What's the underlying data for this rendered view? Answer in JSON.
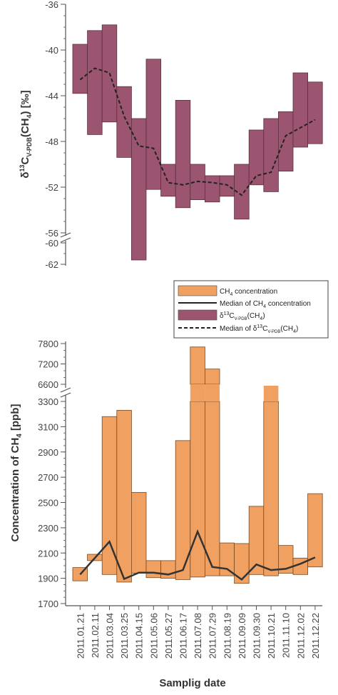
{
  "chart_data": [
    {
      "type": "bar",
      "subtype": "floating-range-with-median",
      "ylabel": "δ13CV-PDB(CH4) [‰]",
      "ylabel_parts": {
        "delta": "δ",
        "sup": "13",
        "c": "C",
        "sub": "V-PDB",
        "open": "(CH",
        "sub4": "4",
        "close": ") [‰]"
      },
      "ylim": [
        -62,
        -36
      ],
      "axis_break": [
        -56,
        -60
      ],
      "yticks": [
        "-36",
        "-40",
        "-44",
        "-48",
        "-52",
        "-56",
        "-60",
        "-62"
      ],
      "grid": false,
      "categories": [
        "2011.01.21",
        "2011.02.11",
        "2011.03.04",
        "2011.03.25",
        "2011.04.15",
        "2011.05.06",
        "2011.05.27",
        "2011.06.17",
        "2011.07.08",
        "2011.07.29",
        "2011.08.19",
        "2011.09.09",
        "2011.09.30",
        "2011.10.21",
        "2011.11.10",
        "2011.12.02",
        "2011.12.22"
      ],
      "series": [
        {
          "name": "δ13CV-PDB(CH4)",
          "type": "range",
          "color": "#9c5570",
          "low": [
            -43.8,
            -47.4,
            -46.3,
            -49.4,
            -61.6,
            -52.2,
            -52.8,
            -53.8,
            -53.1,
            -53.3,
            -52.8,
            -54.8,
            -51.8,
            -52.4,
            -50.6,
            -48.5,
            -48.2
          ],
          "high": [
            -39.5,
            -38.3,
            -37.8,
            -43.2,
            -46.0,
            -40.8,
            -50.0,
            -44.4,
            -50.0,
            -51.0,
            -51.0,
            -50.0,
            -47.0,
            -46.0,
            -45.4,
            -42.0,
            -42.8
          ]
        },
        {
          "name": "Median of δ13CV-PDB(CH4)",
          "type": "line",
          "dash": true,
          "color": "#222222",
          "values": [
            -42.6,
            -41.6,
            -42.0,
            -45.8,
            -48.4,
            -48.6,
            -51.6,
            -51.8,
            -51.5,
            -51.6,
            -51.8,
            -52.7,
            -51.0,
            -50.7,
            -47.5,
            -46.8,
            -46.1
          ]
        }
      ]
    },
    {
      "type": "bar",
      "subtype": "floating-range-with-median",
      "ylabel": "Concentration of CH4 [ppb]",
      "ylabel_parts": {
        "main": "Concentration of CH",
        "sub": "4",
        "unit": " [ppb]"
      },
      "xlabel": "Samplig date",
      "ylim": [
        1700,
        7800
      ],
      "axis_break": [
        3300,
        6600
      ],
      "yticks": [
        "1700",
        "1900",
        "2100",
        "2300",
        "2500",
        "2700",
        "2900",
        "3100",
        "3300",
        "6600",
        "7200",
        "7800"
      ],
      "grid": false,
      "categories": [
        "2011.01.21",
        "2011.02.11",
        "2011.03.04",
        "2011.03.25",
        "2011.04.15",
        "2011.05.06",
        "2011.05.27",
        "2011.06.17",
        "2011.07.08",
        "2011.07.29",
        "2011.08.19",
        "2011.09.09",
        "2011.09.30",
        "2011.10.21",
        "2011.11.10",
        "2011.12.02",
        "2011.12.22"
      ],
      "series": [
        {
          "name": "CH4 concentration",
          "type": "range",
          "color": "#f0a060",
          "low": [
            1880,
            2040,
            1930,
            1870,
            1940,
            1905,
            1900,
            1890,
            1910,
            1920,
            1920,
            1860,
            1930,
            1920,
            1940,
            1930,
            1990
          ],
          "high": [
            1985,
            2090,
            3180,
            3230,
            2580,
            2040,
            2040,
            2990,
            7700,
            7050,
            2180,
            2175,
            2470,
            5500,
            2160,
            2060,
            2570
          ]
        },
        {
          "name": "Median of CH4 concentration",
          "type": "line",
          "dash": false,
          "color": "#333333",
          "values": [
            1930,
            2060,
            2190,
            1895,
            1945,
            1945,
            1930,
            1965,
            2270,
            1990,
            1975,
            1890,
            2010,
            1965,
            1975,
            2015,
            2065
          ]
        }
      ]
    }
  ],
  "legend": {
    "placement": "between-panels-right",
    "items": [
      {
        "kind": "swatch",
        "color": "#f0a060",
        "text": "CH",
        "sub": "4",
        "text2": " concentration"
      },
      {
        "kind": "solid-line",
        "text": "Median of CH",
        "sub": "4",
        "text2": " concentration"
      },
      {
        "kind": "swatch",
        "color": "#9c5570",
        "pre": "δ",
        "sup": "13",
        "text": "C",
        "sub": "V-PDB",
        "text2": "(CH",
        "sub2": "4",
        "text3": ")"
      },
      {
        "kind": "dashed-line",
        "text": "Median of ",
        "pre": "δ",
        "sup": "13",
        "text2": "C",
        "sub": "V-PDB",
        "text3": "(CH",
        "sub2": "4",
        "text4": ")"
      }
    ]
  }
}
